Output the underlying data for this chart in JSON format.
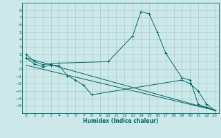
{
  "title": "",
  "xlabel": "Humidex (Indice chaleur)",
  "background_color": "#cce8e8",
  "grid_color": "#aacccc",
  "line_color": "#006666",
  "xlim": [
    -0.5,
    23.5
  ],
  "ylim": [
    -6,
    9
  ],
  "xticks": [
    0,
    1,
    2,
    3,
    4,
    5,
    6,
    7,
    8,
    9,
    10,
    11,
    12,
    13,
    14,
    15,
    16,
    17,
    18,
    19,
    20,
    21,
    22,
    23
  ],
  "yticks": [
    -5,
    -4,
    -3,
    -2,
    -1,
    0,
    1,
    2,
    3,
    4,
    5,
    6,
    7,
    8
  ],
  "series": [
    {
      "x": [
        0,
        1,
        2,
        3,
        4,
        10,
        13,
        14,
        15,
        16,
        17,
        19,
        20,
        21,
        22,
        23
      ],
      "y": [
        2,
        1,
        0.6,
        0.7,
        0.8,
        1.0,
        4.5,
        7.8,
        7.5,
        5.0,
        2.2,
        -1.2,
        -1.5,
        -4.8,
        -5.2,
        -5.6
      ],
      "marker": true
    },
    {
      "x": [
        0,
        1,
        2,
        3,
        4,
        5,
        6,
        7,
        8,
        19,
        20,
        21,
        22,
        23
      ],
      "y": [
        1.5,
        0.7,
        0.3,
        0.5,
        0.5,
        -0.9,
        -1.5,
        -2.2,
        -3.5,
        -1.5,
        -2.0,
        -3.0,
        -4.8,
        -5.6
      ],
      "marker": true
    },
    {
      "x": [
        0,
        23
      ],
      "y": [
        1.5,
        -5.6
      ],
      "marker": false
    },
    {
      "x": [
        0,
        23
      ],
      "y": [
        0.5,
        -5.6
      ],
      "marker": false
    }
  ]
}
